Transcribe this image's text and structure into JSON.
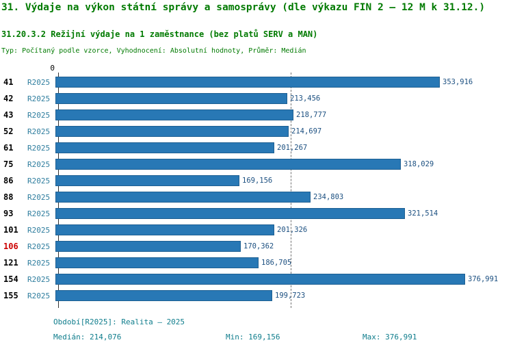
{
  "colors": {
    "title_green": "#007a00",
    "bar_blue": "#2878b5",
    "bar_border": "#1d5f92",
    "value_navy": "#1b4f80",
    "footer_teal": "#0f7d8c",
    "series_label_teal": "#2e7d9e",
    "highlight_red": "#cc0000"
  },
  "header": {
    "title": "31. Výdaje na výkon státní správy a samosprávy (dle výkazu FIN 2 – 12 M k 31.12.)",
    "subtitle": "31.20.3.2 Režijní výdaje na 1 zaměstnance (bez platů SERV a MAN)",
    "meta": "Typ: Počítaný podle vzorce, Vyhodnocení: Absolutní hodnoty, Průměr: Medián"
  },
  "chart_data": {
    "type": "bar",
    "orientation": "horizontal",
    "series_label": "R2025",
    "categories": [
      "41",
      "42",
      "43",
      "52",
      "61",
      "75",
      "86",
      "88",
      "93",
      "101",
      "106",
      "121",
      "154",
      "155"
    ],
    "values": [
      353916,
      213456,
      218777,
      214697,
      201267,
      318029,
      169156,
      234803,
      321514,
      201326,
      170362,
      186705,
      376991,
      199723
    ],
    "value_labels": [
      "353,916",
      "213,456",
      "218,777",
      "214,697",
      "201,267",
      "318,029",
      "169,156",
      "234,803",
      "321,514",
      "201,326",
      "170,362",
      "186,705",
      "376,991",
      "199,723"
    ],
    "highlighted_category": "106",
    "axis_zero_label": "0",
    "median_value": 214076,
    "median_line": true,
    "xlim": [
      0,
      415000
    ],
    "grid": false,
    "legend_position": "bottom"
  },
  "footer": {
    "period": "Období[R2025]: Realita – 2025",
    "median": "Medián: 214,076",
    "min": "Min: 169,156",
    "max": "Max: 376,991"
  }
}
